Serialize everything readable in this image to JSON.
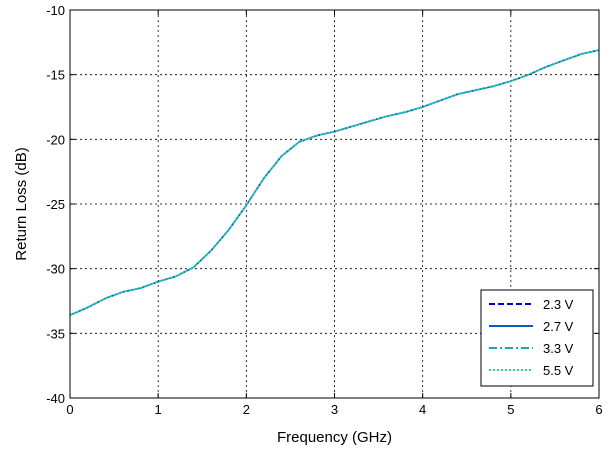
{
  "chart_data": {
    "type": "line",
    "title": "",
    "xlabel": "Frequency (GHz)",
    "ylabel": "Return Loss (dB)",
    "xlim": [
      0,
      6
    ],
    "ylim": [
      -40,
      -10
    ],
    "xticks": [
      0,
      1,
      2,
      3,
      4,
      5,
      6
    ],
    "yticks": [
      -40,
      -35,
      -30,
      -25,
      -20,
      -15,
      -10
    ],
    "xtick_labels": [
      "0",
      "1",
      "2",
      "3",
      "4",
      "5",
      "6"
    ],
    "ytick_labels": [
      "-40",
      "-35",
      "-30",
      "-25",
      "-20",
      "-15",
      "-10"
    ],
    "grid": true,
    "legend_position": "bottom-right",
    "x": [
      0,
      0.2,
      0.4,
      0.6,
      0.8,
      1.0,
      1.2,
      1.4,
      1.6,
      1.8,
      2.0,
      2.2,
      2.4,
      2.6,
      2.8,
      3.0,
      3.2,
      3.4,
      3.6,
      3.8,
      4.0,
      4.2,
      4.4,
      4.6,
      4.8,
      5.0,
      5.2,
      5.4,
      5.6,
      5.8,
      6.0
    ],
    "series": [
      {
        "name": "2.3 V",
        "color": "#0000cc",
        "dash": "dashed",
        "values": [
          -33.6,
          -33.0,
          -32.3,
          -31.8,
          -31.5,
          -31.0,
          -30.6,
          -29.9,
          -28.6,
          -27.0,
          -25.1,
          -23.0,
          -21.3,
          -20.2,
          -19.7,
          -19.4,
          -19.0,
          -18.6,
          -18.2,
          -17.9,
          -17.5,
          -17.0,
          -16.5,
          -16.2,
          -15.9,
          -15.5,
          -15.0,
          -14.4,
          -13.9,
          -13.4,
          -13.1
        ]
      },
      {
        "name": "2.7 V",
        "color": "#0a5ccc",
        "dash": "solid",
        "values": [
          -33.6,
          -33.0,
          -32.3,
          -31.8,
          -31.5,
          -31.0,
          -30.6,
          -29.9,
          -28.6,
          -27.0,
          -25.1,
          -23.0,
          -21.3,
          -20.2,
          -19.7,
          -19.4,
          -19.0,
          -18.6,
          -18.2,
          -17.9,
          -17.5,
          -17.0,
          -16.5,
          -16.2,
          -15.9,
          -15.5,
          -15.0,
          -14.4,
          -13.9,
          -13.4,
          -13.1
        ]
      },
      {
        "name": "3.3 V",
        "color": "#1ea3b8",
        "dash": "dashdot",
        "values": [
          -33.6,
          -33.0,
          -32.3,
          -31.8,
          -31.5,
          -31.0,
          -30.6,
          -29.9,
          -28.6,
          -27.0,
          -25.1,
          -23.0,
          -21.3,
          -20.2,
          -19.7,
          -19.4,
          -19.0,
          -18.6,
          -18.2,
          -17.9,
          -17.5,
          -17.0,
          -16.5,
          -16.2,
          -15.9,
          -15.5,
          -15.0,
          -14.4,
          -13.9,
          -13.4,
          -13.1
        ]
      },
      {
        "name": "5.5 V",
        "color": "#22d4a0",
        "dash": "dotted",
        "values": [
          -33.6,
          -33.0,
          -32.3,
          -31.8,
          -31.5,
          -31.0,
          -30.6,
          -29.9,
          -28.6,
          -27.0,
          -25.1,
          -23.0,
          -21.3,
          -20.2,
          -19.7,
          -19.4,
          -19.0,
          -18.6,
          -18.2,
          -17.9,
          -17.5,
          -17.0,
          -16.5,
          -16.2,
          -15.9,
          -15.5,
          -15.0,
          -14.4,
          -13.9,
          -13.4,
          -13.1
        ]
      }
    ]
  }
}
